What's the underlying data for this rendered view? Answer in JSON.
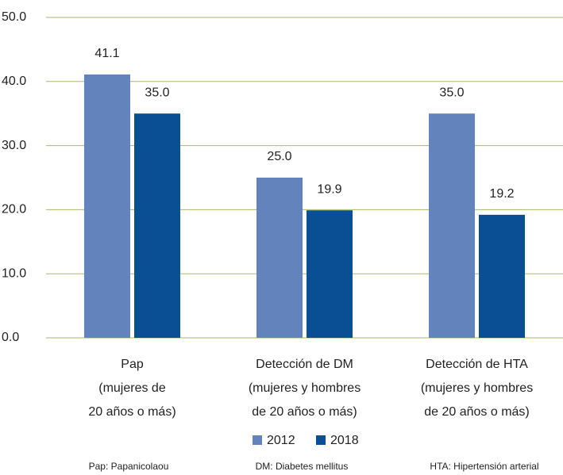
{
  "chart_data": {
    "type": "bar",
    "categories": [
      [
        "Pap",
        "(mujeres de",
        "20 años o más)"
      ],
      [
        "Detección de DM",
        "(mujeres y hombres",
        "de 20 años o más)"
      ],
      [
        "Detección de HTA",
        "(mujeres y hombres",
        "de 20 años o más)"
      ]
    ],
    "series": [
      {
        "name": "2012",
        "color": "#6283bb",
        "values": [
          41.1,
          25.0,
          35.0
        ],
        "value_labels": [
          "41.1",
          "25.0",
          "35.0"
        ]
      },
      {
        "name": "2018",
        "color": "#0a4e93",
        "values": [
          35.0,
          19.9,
          19.2
        ],
        "value_labels": [
          "35.0",
          "19.9",
          "19.2"
        ]
      }
    ],
    "ylim": [
      0,
      50
    ],
    "yticks": [
      {
        "value": 0,
        "label": "0.0"
      },
      {
        "value": 10,
        "label": "10.0"
      },
      {
        "value": 20,
        "label": "20.0"
      },
      {
        "value": 30,
        "label": "30.0"
      },
      {
        "value": 40,
        "label": "40.0"
      },
      {
        "value": 50,
        "label": "50.0"
      }
    ],
    "grid": true,
    "notes": [
      "Pap: Papanicolaou",
      "DM: Diabetes mellitus",
      "HTA: Hipertensión arterial"
    ]
  }
}
